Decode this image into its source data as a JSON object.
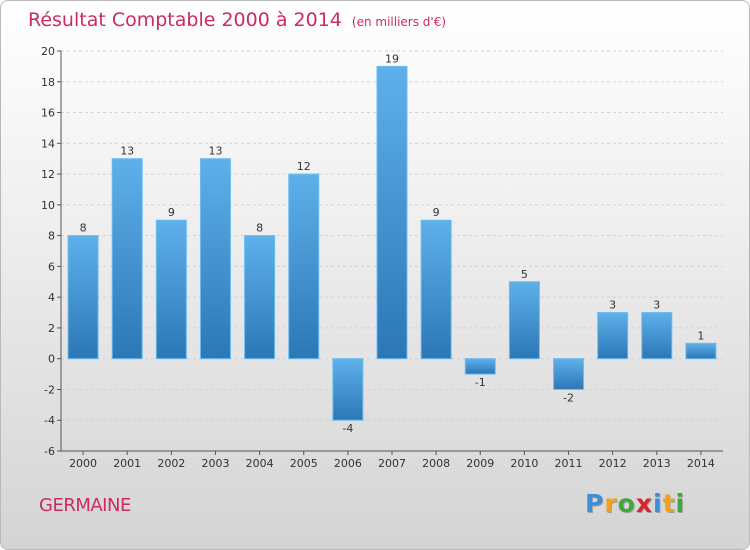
{
  "chart_data": {
    "type": "bar",
    "title": "Résultat Comptable 2000 à 2014",
    "subtitle": "(en milliers d'€)",
    "categories": [
      "2000",
      "2001",
      "2002",
      "2003",
      "2004",
      "2005",
      "2006",
      "2007",
      "2008",
      "2009",
      "2010",
      "2011",
      "2012",
      "2013",
      "2014"
    ],
    "values": [
      8,
      13,
      9,
      13,
      8,
      12,
      -4,
      19,
      9,
      -1,
      5,
      -2,
      3,
      3,
      1
    ],
    "ylim": [
      -6,
      20
    ],
    "yticks": [
      -6,
      -4,
      -2,
      0,
      2,
      4,
      6,
      8,
      10,
      12,
      14,
      16,
      18,
      20
    ],
    "xlabel": "",
    "ylabel": "",
    "bar_color": "#3d8fd2"
  },
  "commune": "GERMAINE",
  "logo": {
    "letters": [
      "P",
      "r",
      "o",
      "x",
      "i",
      "t",
      "i"
    ],
    "colors": [
      "#3c8fd6",
      "#f1a21b",
      "#3faa3a",
      "#d9232f",
      "#3c8fd6",
      "#f1a21b",
      "#3faa3a"
    ]
  }
}
